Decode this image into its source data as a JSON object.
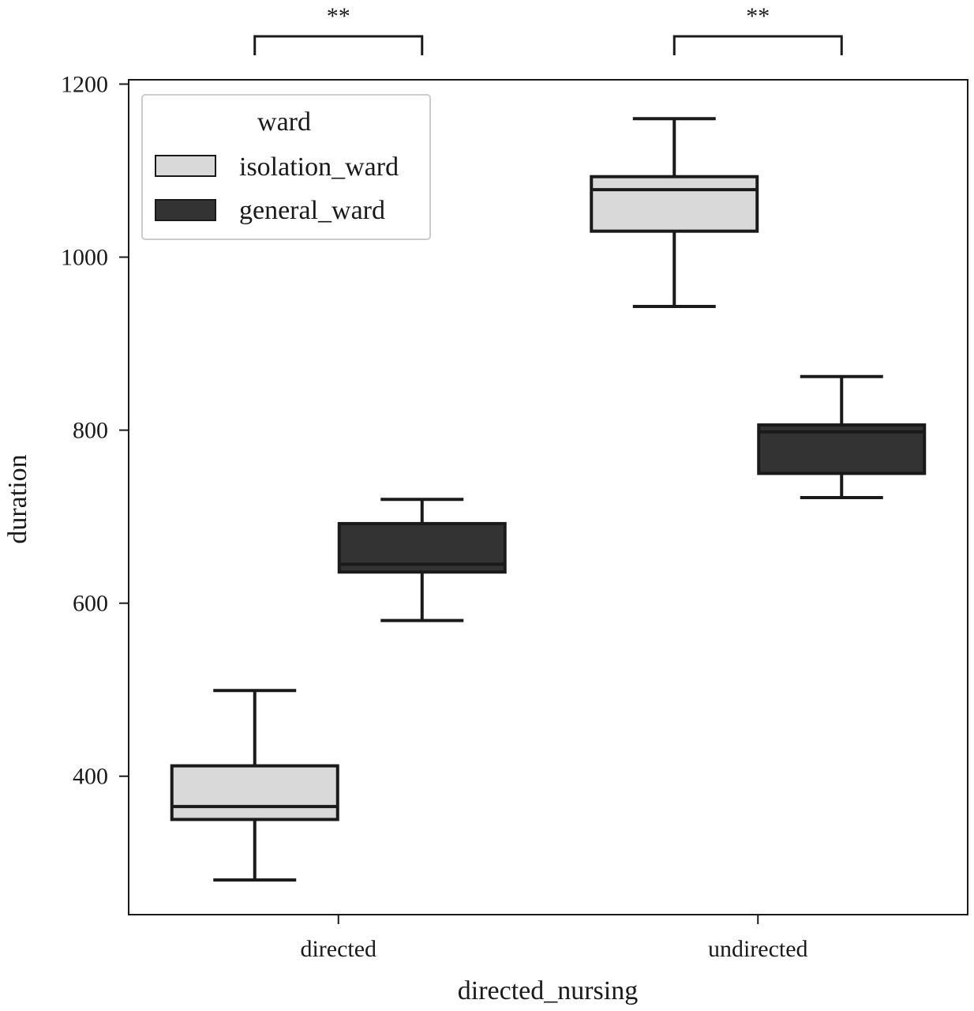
{
  "chart_data": {
    "type": "box",
    "title": "",
    "xlabel": "directed_nursing",
    "ylabel": "duration",
    "categories": [
      "directed",
      "undirected"
    ],
    "ylim": [
      240,
      1205
    ],
    "yticks": [
      400,
      600,
      800,
      1000,
      1200
    ],
    "grid": false,
    "legend": {
      "title": "ward",
      "position": "top-left"
    },
    "series": [
      {
        "name": "isolation_ward",
        "color": "#d9d9d9",
        "boxes": [
          {
            "category": "directed",
            "whisker_low": 280,
            "q1": 350,
            "median": 365,
            "q3": 412,
            "whisker_high": 499
          },
          {
            "category": "undirected",
            "whisker_low": 943,
            "q1": 1030,
            "median": 1078,
            "q3": 1093,
            "whisker_high": 1160
          }
        ]
      },
      {
        "name": "general_ward",
        "color": "#333333",
        "boxes": [
          {
            "category": "directed",
            "whisker_low": 580,
            "q1": 636,
            "median": 645,
            "q3": 692,
            "whisker_high": 720
          },
          {
            "category": "undirected",
            "whisker_low": 722,
            "q1": 750,
            "median": 798,
            "q3": 806,
            "whisker_high": 862
          }
        ]
      }
    ],
    "annotations": [
      {
        "category": "directed",
        "text": "**"
      },
      {
        "category": "undirected",
        "text": "**"
      }
    ]
  }
}
